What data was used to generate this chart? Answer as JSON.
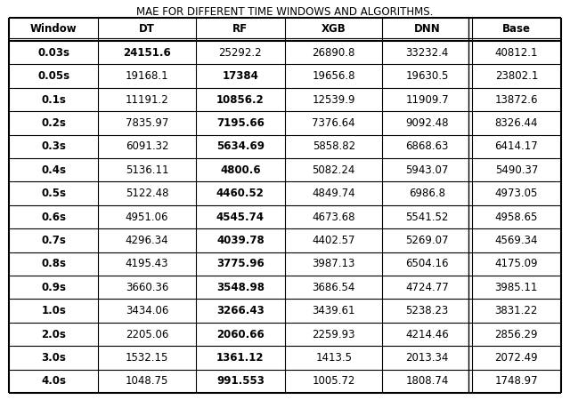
{
  "title": "MAE FOR DIFFERENT TIME WINDOWS AND ALGORITHMS.",
  "columns": [
    "Window",
    "DT",
    "RF",
    "XGB",
    "DNN",
    "Base"
  ],
  "rows": [
    [
      "0.03s",
      "24151.6",
      "25292.2",
      "26890.8",
      "33232.4",
      "40812.1"
    ],
    [
      "0.05s",
      "19168.1",
      "17384",
      "19656.8",
      "19630.5",
      "23802.1"
    ],
    [
      "0.1s",
      "11191.2",
      "10856.2",
      "12539.9",
      "11909.7",
      "13872.6"
    ],
    [
      "0.2s",
      "7835.97",
      "7195.66",
      "7376.64",
      "9092.48",
      "8326.44"
    ],
    [
      "0.3s",
      "6091.32",
      "5634.69",
      "5858.82",
      "6868.63",
      "6414.17"
    ],
    [
      "0.4s",
      "5136.11",
      "4800.6",
      "5082.24",
      "5943.07",
      "5490.37"
    ],
    [
      "0.5s",
      "5122.48",
      "4460.52",
      "4849.74",
      "6986.8",
      "4973.05"
    ],
    [
      "0.6s",
      "4951.06",
      "4545.74",
      "4673.68",
      "5541.52",
      "4958.65"
    ],
    [
      "0.7s",
      "4296.34",
      "4039.78",
      "4402.57",
      "5269.07",
      "4569.34"
    ],
    [
      "0.8s",
      "4195.43",
      "3775.96",
      "3987.13",
      "6504.16",
      "4175.09"
    ],
    [
      "0.9s",
      "3660.36",
      "3548.98",
      "3686.54",
      "4724.77",
      "3985.11"
    ],
    [
      "1.0s",
      "3434.06",
      "3266.43",
      "3439.61",
      "5238.23",
      "3831.22"
    ],
    [
      "2.0s",
      "2205.06",
      "2060.66",
      "2259.93",
      "4214.46",
      "2856.29"
    ],
    [
      "3.0s",
      "1532.15",
      "1361.12",
      "1413.5",
      "2013.34",
      "2072.49"
    ],
    [
      "4.0s",
      "1048.75",
      "991.553",
      "1005.72",
      "1808.74",
      "1748.97"
    ]
  ],
  "background": "#ffffff",
  "title_fontsize": 8.5,
  "cell_fontsize": 8.5,
  "col_widths_ratio": [
    1.1,
    1.2,
    1.1,
    1.2,
    1.1,
    1.1
  ]
}
